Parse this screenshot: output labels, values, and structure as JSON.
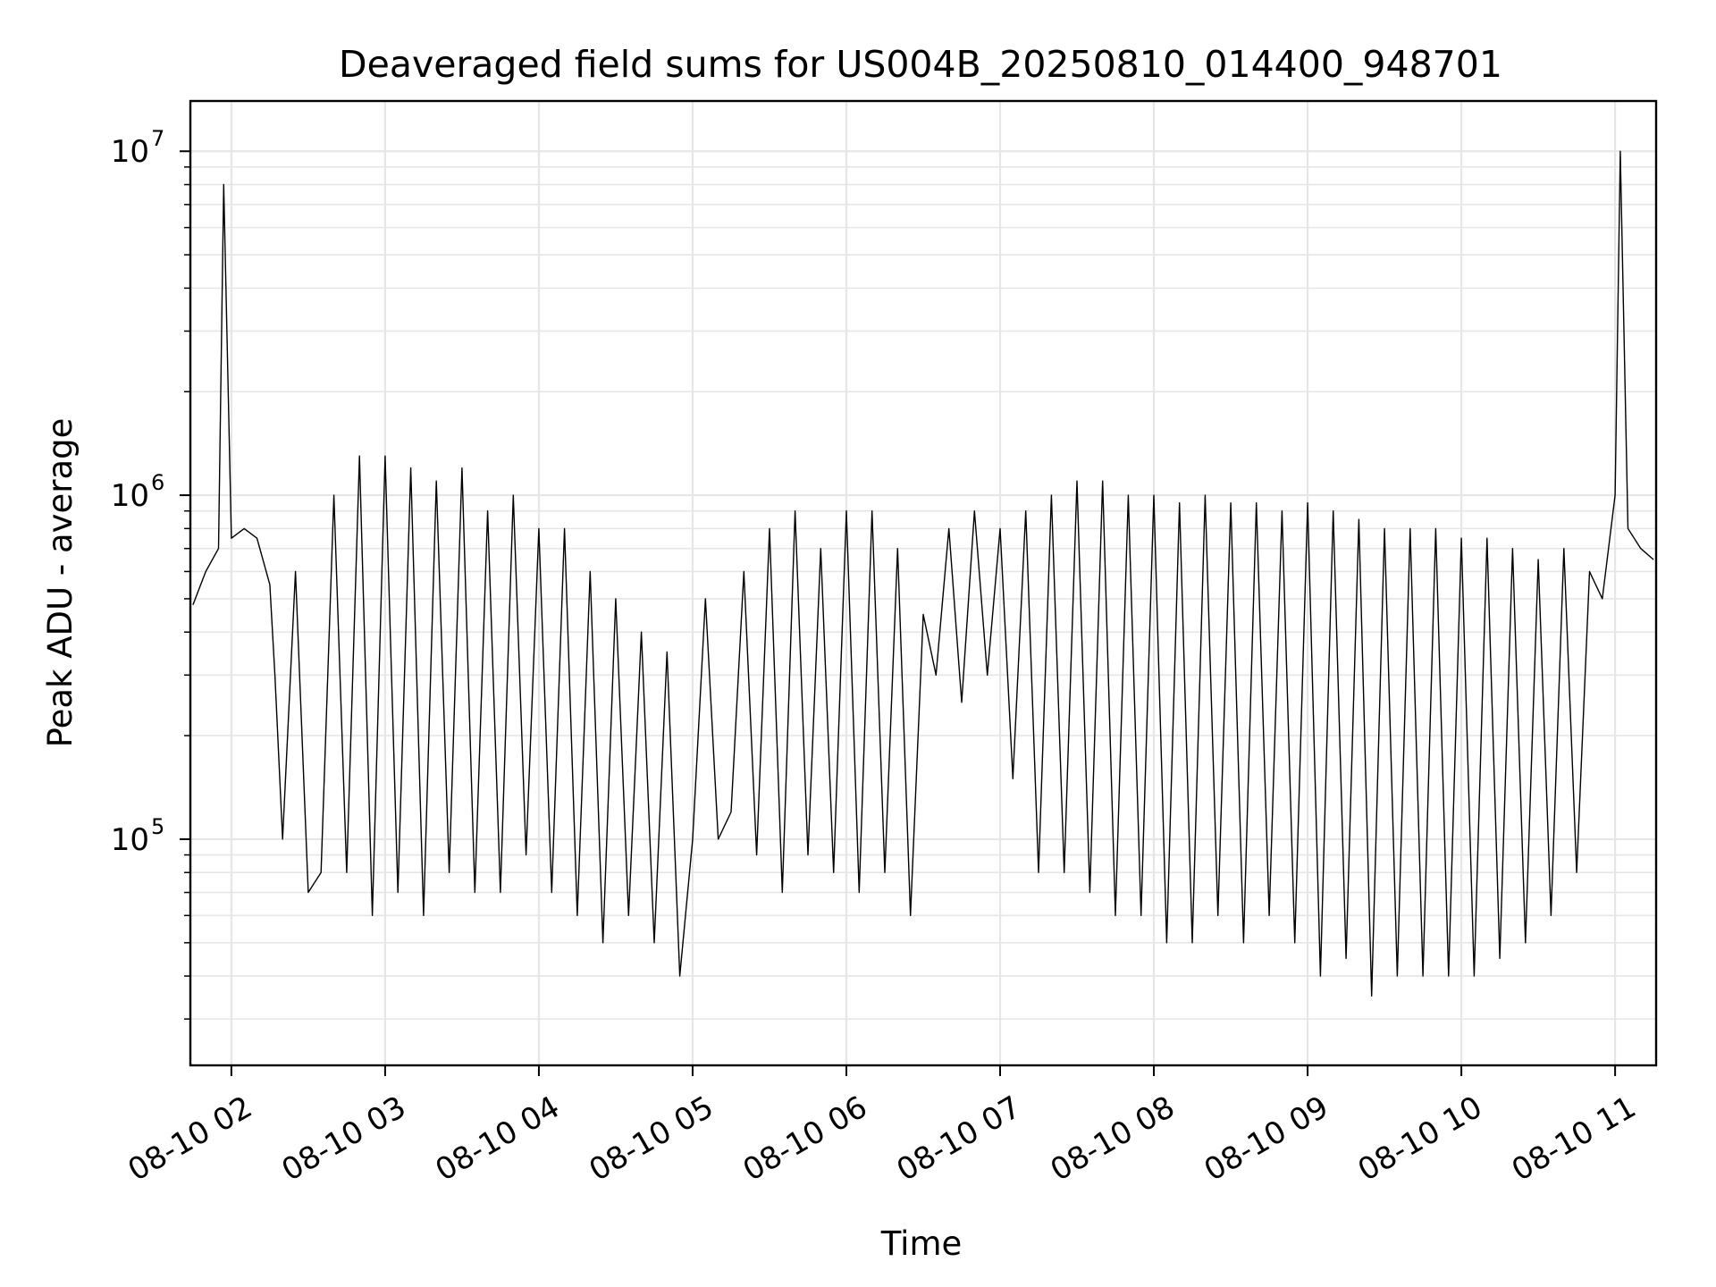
{
  "chart_data": {
    "type": "line",
    "title": "Deaveraged field sums for US004B_20250810_014400_948701",
    "xlabel": "Time",
    "ylabel": "Peak ADU - average",
    "yscale": "log",
    "grid": true,
    "line_color": "#000000",
    "grid_color": "#e6e6e6",
    "xlim": [
      "2025-08-10 01:44",
      "2025-08-10 11:16"
    ],
    "ylim": [
      22000,
      14000000
    ],
    "x_ticks": [
      {
        "value": "2025-08-10 02:00",
        "label": "08-10 02"
      },
      {
        "value": "2025-08-10 03:00",
        "label": "08-10 03"
      },
      {
        "value": "2025-08-10 04:00",
        "label": "08-10 04"
      },
      {
        "value": "2025-08-10 05:00",
        "label": "08-10 05"
      },
      {
        "value": "2025-08-10 06:00",
        "label": "08-10 06"
      },
      {
        "value": "2025-08-10 07:00",
        "label": "08-10 07"
      },
      {
        "value": "2025-08-10 08:00",
        "label": "08-10 08"
      },
      {
        "value": "2025-08-10 09:00",
        "label": "08-10 09"
      },
      {
        "value": "2025-08-10 10:00",
        "label": "08-10 10"
      },
      {
        "value": "2025-08-10 11:00",
        "label": "08-10 11"
      }
    ],
    "y_ticks": [
      {
        "value": 100000,
        "base": "10",
        "exp": "5"
      },
      {
        "value": 1000000,
        "base": "10",
        "exp": "6"
      },
      {
        "value": 10000000,
        "base": "10",
        "exp": "7"
      }
    ],
    "series": [
      {
        "x": [
          "2025-08-10 01:45",
          "2025-08-10 01:50",
          "2025-08-10 01:55",
          "2025-08-10 01:57",
          "2025-08-10 02:00",
          "2025-08-10 02:05",
          "2025-08-10 02:10",
          "2025-08-10 02:15",
          "2025-08-10 02:17",
          "2025-08-10 02:20",
          "2025-08-10 02:25",
          "2025-08-10 02:30",
          "2025-08-10 02:35",
          "2025-08-10 02:40",
          "2025-08-10 02:45",
          "2025-08-10 02:50",
          "2025-08-10 02:55",
          "2025-08-10 03:00",
          "2025-08-10 03:05",
          "2025-08-10 03:10",
          "2025-08-10 03:15",
          "2025-08-10 03:20",
          "2025-08-10 03:25",
          "2025-08-10 03:30",
          "2025-08-10 03:35",
          "2025-08-10 03:40",
          "2025-08-10 03:45",
          "2025-08-10 03:50",
          "2025-08-10 03:55",
          "2025-08-10 04:00",
          "2025-08-10 04:05",
          "2025-08-10 04:10",
          "2025-08-10 04:15",
          "2025-08-10 04:20",
          "2025-08-10 04:25",
          "2025-08-10 04:30",
          "2025-08-10 04:35",
          "2025-08-10 04:40",
          "2025-08-10 04:45",
          "2025-08-10 04:50",
          "2025-08-10 04:55",
          "2025-08-10 05:00",
          "2025-08-10 05:05",
          "2025-08-10 05:10",
          "2025-08-10 05:15",
          "2025-08-10 05:20",
          "2025-08-10 05:25",
          "2025-08-10 05:30",
          "2025-08-10 05:35",
          "2025-08-10 05:40",
          "2025-08-10 05:45",
          "2025-08-10 05:50",
          "2025-08-10 05:55",
          "2025-08-10 06:00",
          "2025-08-10 06:05",
          "2025-08-10 06:10",
          "2025-08-10 06:15",
          "2025-08-10 06:20",
          "2025-08-10 06:25",
          "2025-08-10 06:30",
          "2025-08-10 06:35",
          "2025-08-10 06:40",
          "2025-08-10 06:45",
          "2025-08-10 06:50",
          "2025-08-10 06:55",
          "2025-08-10 07:00",
          "2025-08-10 07:05",
          "2025-08-10 07:10",
          "2025-08-10 07:15",
          "2025-08-10 07:20",
          "2025-08-10 07:25",
          "2025-08-10 07:30",
          "2025-08-10 07:35",
          "2025-08-10 07:40",
          "2025-08-10 07:45",
          "2025-08-10 07:50",
          "2025-08-10 07:55",
          "2025-08-10 08:00",
          "2025-08-10 08:05",
          "2025-08-10 08:10",
          "2025-08-10 08:15",
          "2025-08-10 08:20",
          "2025-08-10 08:25",
          "2025-08-10 08:30",
          "2025-08-10 08:35",
          "2025-08-10 08:40",
          "2025-08-10 08:45",
          "2025-08-10 08:50",
          "2025-08-10 08:55",
          "2025-08-10 09:00",
          "2025-08-10 09:05",
          "2025-08-10 09:10",
          "2025-08-10 09:15",
          "2025-08-10 09:20",
          "2025-08-10 09:25",
          "2025-08-10 09:30",
          "2025-08-10 09:35",
          "2025-08-10 09:40",
          "2025-08-10 09:45",
          "2025-08-10 09:50",
          "2025-08-10 09:55",
          "2025-08-10 10:00",
          "2025-08-10 10:05",
          "2025-08-10 10:10",
          "2025-08-10 10:15",
          "2025-08-10 10:20",
          "2025-08-10 10:25",
          "2025-08-10 10:30",
          "2025-08-10 10:35",
          "2025-08-10 10:40",
          "2025-08-10 10:45",
          "2025-08-10 10:50",
          "2025-08-10 10:55",
          "2025-08-10 11:00",
          "2025-08-10 11:02",
          "2025-08-10 11:05",
          "2025-08-10 11:10",
          "2025-08-10 11:15"
        ],
        "y": [
          480000,
          600000,
          700000,
          8000000,
          750000,
          800000,
          750000,
          550000,
          300000,
          100000,
          600000,
          70000,
          80000,
          1000000,
          80000,
          1300000,
          60000,
          1300000,
          70000,
          1200000,
          60000,
          1100000,
          80000,
          1200000,
          70000,
          900000,
          70000,
          1000000,
          90000,
          800000,
          70000,
          800000,
          60000,
          600000,
          50000,
          500000,
          60000,
          400000,
          50000,
          350000,
          40000,
          100000,
          500000,
          100000,
          120000,
          600000,
          90000,
          800000,
          70000,
          900000,
          90000,
          700000,
          80000,
          900000,
          70000,
          900000,
          80000,
          700000,
          60000,
          450000,
          300000,
          800000,
          250000,
          900000,
          300000,
          800000,
          150000,
          900000,
          80000,
          1000000,
          80000,
          1100000,
          70000,
          1100000,
          60000,
          1000000,
          60000,
          1000000,
          50000,
          950000,
          50000,
          1000000,
          60000,
          950000,
          50000,
          950000,
          60000,
          900000,
          50000,
          950000,
          40000,
          900000,
          45000,
          850000,
          35000,
          800000,
          40000,
          800000,
          40000,
          800000,
          40000,
          750000,
          40000,
          750000,
          45000,
          700000,
          50000,
          650000,
          60000,
          700000,
          80000,
          600000,
          500000,
          1000000,
          10000000,
          800000,
          700000,
          650000
        ]
      }
    ]
  }
}
